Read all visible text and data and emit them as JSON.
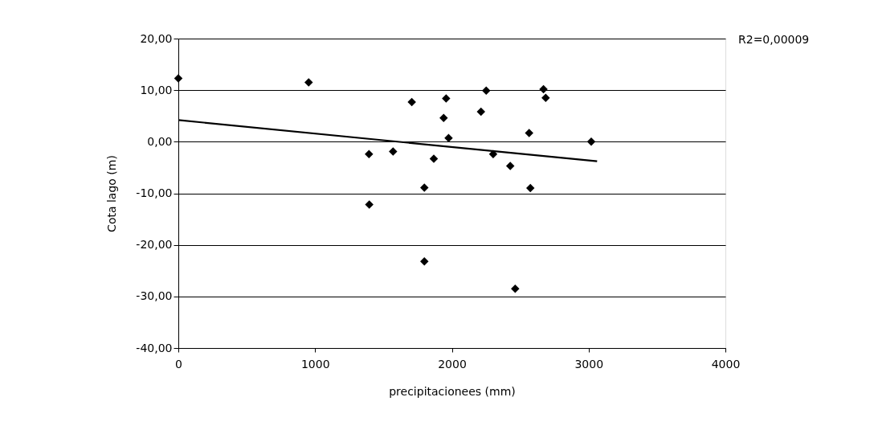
{
  "chart_data": {
    "type": "scatter",
    "xlabel": "precipitacionees (mm)",
    "ylabel": "Cota lago (m)",
    "annotations": [
      "R2=0,00009"
    ],
    "xlim": [
      0,
      4000
    ],
    "xticks": [
      0,
      1000,
      2000,
      3000,
      4000
    ],
    "ylim": [
      -40,
      20
    ],
    "yticks": [
      {
        "value": -40,
        "label": "-40,00"
      },
      {
        "value": -30,
        "label": "-30,00"
      },
      {
        "value": -20,
        "label": "-20,00"
      },
      {
        "value": -10,
        "label": "-10,00"
      },
      {
        "value": 0,
        "label": "0,00"
      },
      {
        "value": 10,
        "label": "10,00"
      },
      {
        "value": 20,
        "label": "20,00"
      }
    ],
    "grid": "y",
    "series": [
      {
        "color": "#000000",
        "marker": "diamond",
        "x": [
          0,
          953,
          1707,
          1958,
          1940,
          1976,
          1394,
          1570,
          1868,
          1799,
          1396,
          1799,
          2251,
          2213,
          2670,
          2686,
          2565,
          3019,
          2302,
          2427,
          2574,
          2463
        ],
        "values": [
          12.3,
          11.5,
          7.7,
          8.4,
          4.6,
          0.7,
          -2.4,
          -1.9,
          -3.3,
          -8.9,
          -12.2,
          -23.2,
          9.9,
          5.8,
          10.2,
          8.5,
          1.7,
          0.0,
          -2.4,
          -4.7,
          -9.0,
          -28.5
        ]
      },
      {
        "type": "line",
        "color": "#000000",
        "marker": "none",
        "line_style": "solid",
        "x": [
          0,
          3062
        ],
        "values": [
          4.2,
          -3.8
        ]
      }
    ]
  }
}
